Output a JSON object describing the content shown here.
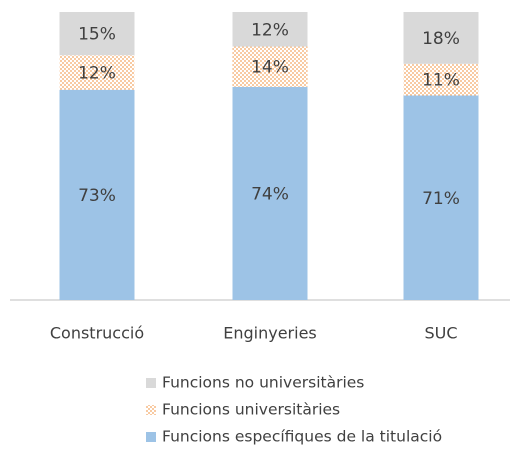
{
  "chart_data": {
    "type": "stacked_bar",
    "categories": [
      "Construcció",
      "Enginyeries",
      "SUC"
    ],
    "series": [
      {
        "name": "Funcions específiques de la titulació",
        "color": "#9dc3e6",
        "values": [
          73,
          74,
          71
        ],
        "value_labels": [
          "73%",
          "74%",
          "71%"
        ]
      },
      {
        "name": "Funcions universitàries",
        "color": "#f4a460",
        "values": [
          12,
          14,
          11
        ],
        "value_labels": [
          "12%",
          "14%",
          "11%"
        ]
      },
      {
        "name": "Funcions no universitàries",
        "color": "#d9d9d9",
        "values": [
          15,
          12,
          18
        ],
        "value_labels": [
          "15%",
          "12%",
          "18%"
        ]
      }
    ]
  }
}
